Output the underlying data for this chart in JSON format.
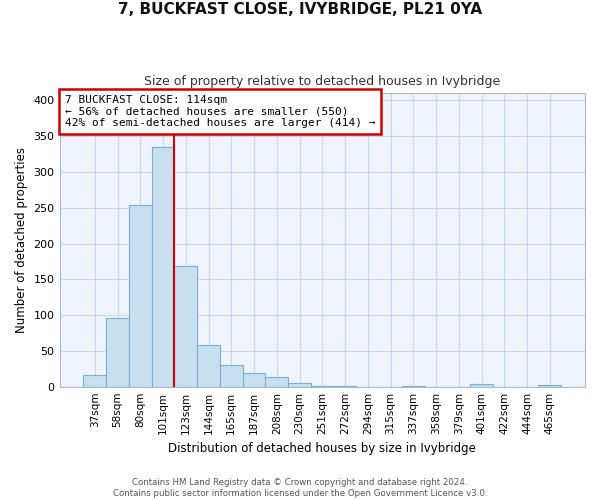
{
  "title": "7, BUCKFAST CLOSE, IVYBRIDGE, PL21 0YA",
  "subtitle": "Size of property relative to detached houses in Ivybridge",
  "xlabel": "Distribution of detached houses by size in Ivybridge",
  "ylabel": "Number of detached properties",
  "bin_labels": [
    "37sqm",
    "58sqm",
    "80sqm",
    "101sqm",
    "123sqm",
    "144sqm",
    "165sqm",
    "187sqm",
    "208sqm",
    "230sqm",
    "251sqm",
    "272sqm",
    "294sqm",
    "315sqm",
    "337sqm",
    "358sqm",
    "379sqm",
    "401sqm",
    "422sqm",
    "444sqm",
    "465sqm"
  ],
  "bar_heights": [
    17,
    96,
    254,
    335,
    168,
    58,
    30,
    19,
    13,
    5,
    1,
    1,
    0,
    0,
    1,
    0,
    0,
    4,
    0,
    0,
    3
  ],
  "bar_color": "#c8dff0",
  "bar_edge_color": "#7aaed4",
  "highlight_color": "#cc0000",
  "red_line_bar_index": 3,
  "annotation_lines": [
    "7 BUCKFAST CLOSE: 114sqm",
    "← 56% of detached houses are smaller (550)",
    "42% of semi-detached houses are larger (414) →"
  ],
  "ylim": [
    0,
    410
  ],
  "yticks": [
    0,
    50,
    100,
    150,
    200,
    250,
    300,
    350,
    400
  ],
  "footer_line1": "Contains HM Land Registry data © Crown copyright and database right 2024.",
  "footer_line2": "Contains public sector information licensed under the Open Government Licence v3.0.",
  "background_color": "#ffffff",
  "grid_color": "#c8d8e8",
  "plot_bg_color": "#eef4fa"
}
